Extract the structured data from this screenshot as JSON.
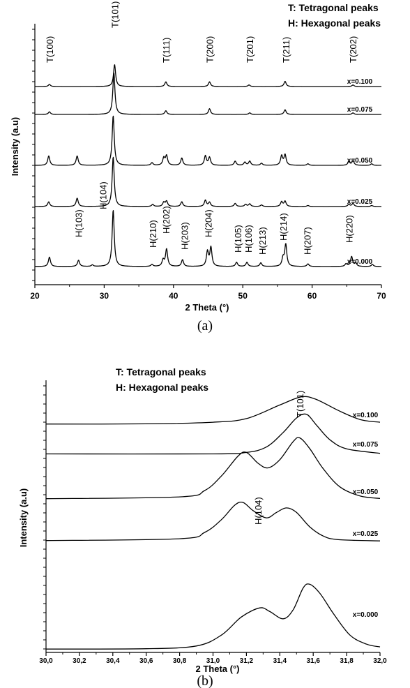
{
  "chart_data": [
    {
      "type": "line",
      "xlabel": "2 Theta (°)",
      "ylabel": "Intensity (a.u)",
      "xlim": [
        20,
        70
      ],
      "xticks": [
        "20",
        "30",
        "40",
        "50",
        "60",
        "70"
      ],
      "caption": "(a)",
      "legend": [
        "T: Tetragonal peaks",
        "H: Hexagonal peaks"
      ],
      "series": [
        {
          "name": "x=0.100",
          "peaks": [
            [
              22.1,
              4
            ],
            [
              31.5,
              42
            ],
            [
              38.9,
              9
            ],
            [
              45.2,
              9
            ],
            [
              50.9,
              3
            ],
            [
              56.1,
              10
            ],
            [
              65.9,
              3
            ]
          ]
        },
        {
          "name": "x=0.075",
          "peaks": [
            [
              22.1,
              5
            ],
            [
              31.4,
              80
            ],
            [
              38.9,
              7
            ],
            [
              45.2,
              11
            ],
            [
              51.0,
              3
            ],
            [
              56.1,
              9
            ],
            [
              65.9,
              3
            ]
          ]
        },
        {
          "name": "x=0.050",
          "peaks": [
            [
              22.0,
              18
            ],
            [
              26.1,
              18
            ],
            [
              31.3,
              95
            ],
            [
              36.9,
              5
            ],
            [
              38.6,
              14
            ],
            [
              39.0,
              18
            ],
            [
              41.2,
              14
            ],
            [
              44.6,
              18
            ],
            [
              45.2,
              15
            ],
            [
              48.9,
              8
            ],
            [
              50.3,
              6
            ],
            [
              51.0,
              8
            ],
            [
              52.7,
              4
            ],
            [
              55.6,
              18
            ],
            [
              56.1,
              20
            ],
            [
              59.4,
              3
            ],
            [
              65.3,
              7
            ],
            [
              65.9,
              9
            ],
            [
              68.6,
              3
            ]
          ]
        },
        {
          "name": "x=0.025",
          "peaks": [
            [
              22.0,
              9
            ],
            [
              26.1,
              16
            ],
            [
              31.3,
              95
            ],
            [
              37.0,
              4
            ],
            [
              38.6,
              8
            ],
            [
              39.0,
              10
            ],
            [
              41.2,
              9
            ],
            [
              44.6,
              12
            ],
            [
              45.2,
              8
            ],
            [
              48.9,
              6
            ],
            [
              50.4,
              4
            ],
            [
              51.0,
              5
            ],
            [
              52.7,
              3
            ],
            [
              55.6,
              9
            ],
            [
              56.1,
              10
            ],
            [
              59.4,
              2
            ],
            [
              65.3,
              4
            ],
            [
              65.9,
              6
            ],
            [
              68.6,
              2
            ]
          ]
        },
        {
          "name": "x=0.000",
          "peaks": [
            [
              22.1,
              18
            ],
            [
              26.3,
              12
            ],
            [
              28.3,
              3
            ],
            [
              31.3,
              108
            ],
            [
              36.9,
              4
            ],
            [
              38.5,
              12
            ],
            [
              39.0,
              33
            ],
            [
              41.3,
              13
            ],
            [
              44.9,
              28
            ],
            [
              45.4,
              36
            ],
            [
              49.1,
              8
            ],
            [
              50.6,
              8
            ],
            [
              52.6,
              7
            ],
            [
              55.8,
              15
            ],
            [
              56.2,
              42
            ],
            [
              59.4,
              5
            ],
            [
              64.9,
              5
            ],
            [
              65.7,
              19
            ],
            [
              66.3,
              6
            ],
            [
              68.7,
              4
            ]
          ]
        }
      ],
      "annotations": [
        {
          "text": "T(100)",
          "x": 22.1
        },
        {
          "text": "T(101)",
          "x": 31.5
        },
        {
          "text": "T(111)",
          "x": 38.9
        },
        {
          "text": "T(200)",
          "x": 45.2
        },
        {
          "text": "T(201)",
          "x": 51.0
        },
        {
          "text": "T(211)",
          "x": 56.2
        },
        {
          "text": "T(202)",
          "x": 65.9
        },
        {
          "text": "H(103)",
          "x": 26.3
        },
        {
          "text": "H(104)",
          "x": 29.8
        },
        {
          "text": "H(210)",
          "x": 37.0
        },
        {
          "text": "H(202)",
          "x": 38.9
        },
        {
          "text": "H(203)",
          "x": 41.6
        },
        {
          "text": "H(204)",
          "x": 45.0
        },
        {
          "text": "H(105)",
          "x": 49.3
        },
        {
          "text": "H(106)",
          "x": 50.8
        },
        {
          "text": "H(213)",
          "x": 52.8
        },
        {
          "text": "H(214)",
          "x": 55.8
        },
        {
          "text": "H(207)",
          "x": 59.3
        },
        {
          "text": "H(220)",
          "x": 65.3
        }
      ]
    },
    {
      "type": "line",
      "xlabel": "2 Theta (°)",
      "ylabel": "Intensity (a.u)",
      "xlim": [
        30.0,
        32.0
      ],
      "xticks": [
        "30,0",
        "30,2",
        "30,4",
        "30,6",
        "30,8",
        "31,0",
        "31,2",
        "31,4",
        "31,6",
        "31,8",
        "32,0"
      ],
      "caption": "(b)",
      "legend": [
        "T: Tetragonal peaks",
        "H: Hexagonal peaks"
      ],
      "series": [
        {
          "name": "x=0.100",
          "points": [
            [
              30.0,
              0.5
            ],
            [
              30.6,
              0.6
            ],
            [
              31.0,
              1.5
            ],
            [
              31.2,
              3.5
            ],
            [
              31.4,
              11
            ],
            [
              31.53,
              15.5
            ],
            [
              31.62,
              14
            ],
            [
              31.75,
              8
            ],
            [
              31.88,
              3
            ],
            [
              32.0,
              1.5
            ]
          ]
        },
        {
          "name": "x=0.075",
          "points": [
            [
              30.0,
              0.2
            ],
            [
              31.0,
              0.2
            ],
            [
              31.2,
              1
            ],
            [
              31.32,
              4
            ],
            [
              31.42,
              12
            ],
            [
              31.5,
              20
            ],
            [
              31.56,
              22
            ],
            [
              31.62,
              16
            ],
            [
              31.7,
              8
            ],
            [
              31.8,
              3
            ],
            [
              32.0,
              0.5
            ]
          ]
        },
        {
          "name": "x=0.050",
          "points": [
            [
              30.0,
              0.5
            ],
            [
              30.8,
              1.5
            ],
            [
              30.95,
              5
            ],
            [
              31.05,
              13
            ],
            [
              31.15,
              24
            ],
            [
              31.2,
              26
            ],
            [
              31.27,
              20
            ],
            [
              31.33,
              17.5
            ],
            [
              31.4,
              22
            ],
            [
              31.48,
              32
            ],
            [
              31.52,
              34
            ],
            [
              31.58,
              28
            ],
            [
              31.66,
              17
            ],
            [
              31.76,
              7
            ],
            [
              31.88,
              2
            ],
            [
              32.0,
              0.6
            ]
          ]
        },
        {
          "name": "x=0.025",
          "points": [
            [
              30.0,
              0.5
            ],
            [
              30.8,
              1.5
            ],
            [
              30.95,
              5
            ],
            [
              31.05,
              12
            ],
            [
              31.13,
              20
            ],
            [
              31.18,
              21.5
            ],
            [
              31.24,
              17
            ],
            [
              31.32,
              13
            ],
            [
              31.38,
              16
            ],
            [
              31.44,
              18.5
            ],
            [
              31.5,
              16
            ],
            [
              31.58,
              8
            ],
            [
              31.66,
              3
            ],
            [
              31.75,
              1
            ],
            [
              32.0,
              0.3
            ]
          ]
        },
        {
          "name": "x=0.000",
          "points": [
            [
              30.0,
              0.3
            ],
            [
              30.6,
              0.5
            ],
            [
              30.9,
              2
            ],
            [
              31.05,
              8
            ],
            [
              31.17,
              18
            ],
            [
              31.28,
              23
            ],
            [
              31.34,
              21
            ],
            [
              31.42,
              17
            ],
            [
              31.48,
              22
            ],
            [
              31.54,
              34
            ],
            [
              31.58,
              36
            ],
            [
              31.64,
              31
            ],
            [
              31.72,
              20
            ],
            [
              31.82,
              8
            ],
            [
              31.92,
              3
            ],
            [
              32.0,
              1.5
            ]
          ]
        }
      ],
      "annotations": [
        {
          "text": "T(101)",
          "x": 31.52
        },
        {
          "text": "H(104)",
          "x": 31.27
        }
      ]
    }
  ]
}
